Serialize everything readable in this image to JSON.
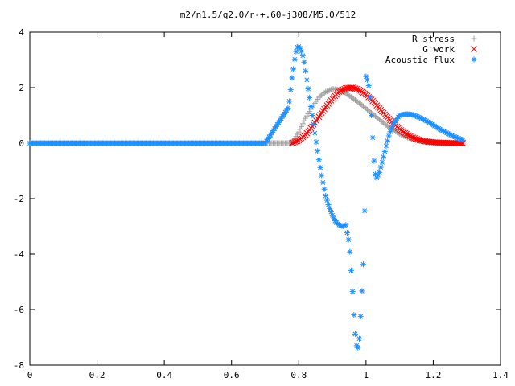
{
  "chart_data": {
    "type": "scatter",
    "title": "m2/n1.5/q2.0/r-+.60-j308/M5.0/512",
    "xlabel": "",
    "ylabel": "",
    "xlim": [
      0,
      1.4
    ],
    "ylim": [
      -8,
      4
    ],
    "x_ticks": [
      "0",
      "0.2",
      "0.4",
      "0.6",
      "0.8",
      "1",
      "1.2",
      "1.4"
    ],
    "y_ticks": [
      "4",
      "2",
      "0",
      "-2",
      "-4",
      "-6",
      "-8"
    ],
    "grid": false,
    "legend_position": "top-right",
    "series": [
      {
        "name": "R stress",
        "marker": "plus",
        "color": "#a0a0a0",
        "x": [
          0.0,
          0.1,
          0.2,
          0.3,
          0.4,
          0.5,
          0.6,
          0.7,
          0.78,
          0.8,
          0.82,
          0.84,
          0.86,
          0.88,
          0.9,
          0.92,
          0.94,
          0.96,
          0.98,
          1.0,
          1.02,
          1.04,
          1.06,
          1.08,
          1.1,
          1.12,
          1.14,
          1.16,
          1.18,
          1.2,
          1.22,
          1.24,
          1.26,
          1.28,
          1.29
        ],
        "y": [
          0,
          0,
          0,
          0,
          0,
          0,
          0,
          0,
          0.0,
          0.4,
          0.9,
          1.3,
          1.65,
          1.85,
          1.95,
          1.92,
          1.8,
          1.62,
          1.45,
          1.25,
          1.05,
          0.85,
          0.65,
          0.48,
          0.33,
          0.22,
          0.14,
          0.08,
          0.05,
          0.03,
          0.02,
          0.01,
          0.01,
          0.0,
          0.0
        ]
      },
      {
        "name": "G work",
        "marker": "cross",
        "color": "#ff0000",
        "x": [
          0.78,
          0.8,
          0.82,
          0.84,
          0.86,
          0.88,
          0.9,
          0.92,
          0.94,
          0.96,
          0.98,
          1.0,
          1.02,
          1.04,
          1.06,
          1.08,
          1.1,
          1.12,
          1.14,
          1.16,
          1.18,
          1.2,
          1.22,
          1.24,
          1.26,
          1.28,
          1.29
        ],
        "y": [
          0.0,
          0.1,
          0.3,
          0.6,
          0.95,
          1.3,
          1.6,
          1.85,
          1.98,
          2.0,
          1.92,
          1.75,
          1.52,
          1.25,
          0.98,
          0.72,
          0.5,
          0.33,
          0.2,
          0.11,
          0.06,
          0.03,
          0.02,
          0.01,
          0.0,
          0.0,
          0.0
        ]
      },
      {
        "name": "Acoustic flux",
        "marker": "star",
        "color": "#1e90ff",
        "x": [
          0.0,
          0.1,
          0.2,
          0.3,
          0.4,
          0.5,
          0.6,
          0.7,
          0.77,
          0.78,
          0.785,
          0.79,
          0.795,
          0.8,
          0.805,
          0.81,
          0.815,
          0.82,
          0.825,
          0.83,
          0.84,
          0.85,
          0.86,
          0.87,
          0.88,
          0.89,
          0.9,
          0.91,
          0.92,
          0.93,
          0.94,
          0.945,
          0.95,
          0.955,
          0.96,
          0.965,
          0.97,
          0.975,
          0.98,
          0.985,
          0.99,
          0.995,
          1.0,
          1.005,
          1.01,
          1.015,
          1.02,
          1.025,
          1.03,
          1.04,
          1.05,
          1.06,
          1.07,
          1.08,
          1.09,
          1.1,
          1.12,
          1.14,
          1.16,
          1.18,
          1.2,
          1.22,
          1.24,
          1.26,
          1.28,
          1.29
        ],
        "y": [
          0,
          0,
          0,
          0,
          0,
          0,
          0,
          0,
          1.3,
          2.35,
          2.75,
          3.2,
          3.45,
          3.48,
          3.4,
          3.25,
          3.0,
          2.6,
          2.2,
          1.8,
          1.0,
          0.2,
          -0.6,
          -1.3,
          -1.9,
          -2.3,
          -2.6,
          -2.85,
          -2.95,
          -3.0,
          -2.95,
          -3.3,
          -3.6,
          -4.4,
          -5.35,
          -6.4,
          -7.2,
          -7.45,
          -7.05,
          -6.05,
          -4.85,
          -3.65,
          2.4,
          2.25,
          1.95,
          1.2,
          0.2,
          -0.85,
          -1.3,
          -1.05,
          -0.6,
          -0.1,
          0.35,
          0.65,
          0.85,
          1.0,
          1.05,
          1.02,
          0.92,
          0.8,
          0.65,
          0.5,
          0.37,
          0.25,
          0.15,
          0.1
        ]
      }
    ]
  }
}
